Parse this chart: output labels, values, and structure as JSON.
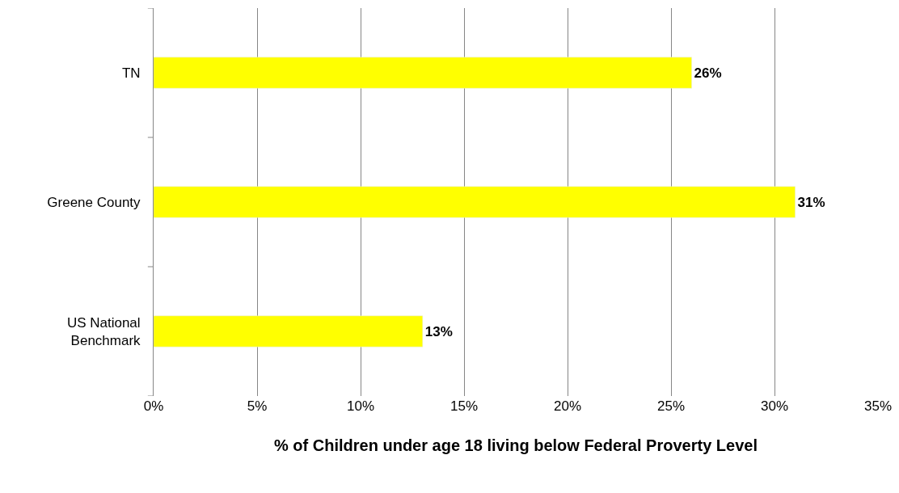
{
  "chart_data": {
    "type": "bar",
    "orientation": "horizontal",
    "xlabel": "% of Children under age 18 living below Federal Proverty Level",
    "categories": [
      "TN",
      "Greene County",
      "US National Benchmark"
    ],
    "values": [
      26,
      31,
      13
    ],
    "color": "#ffff00",
    "value_labels": [
      "26%",
      "31%",
      "13%"
    ],
    "xlim": [
      0,
      35
    ],
    "xticks": [
      {
        "value": 0,
        "label": "0%"
      },
      {
        "value": 5,
        "label": "5%"
      },
      {
        "value": 10,
        "label": "10%"
      },
      {
        "value": 15,
        "label": "15%"
      },
      {
        "value": 20,
        "label": "20%"
      },
      {
        "value": 25,
        "label": "25%"
      },
      {
        "value": 30,
        "label": "30%"
      },
      {
        "value": 35,
        "label": "35%"
      }
    ],
    "grid": "x",
    "legend": false
  }
}
